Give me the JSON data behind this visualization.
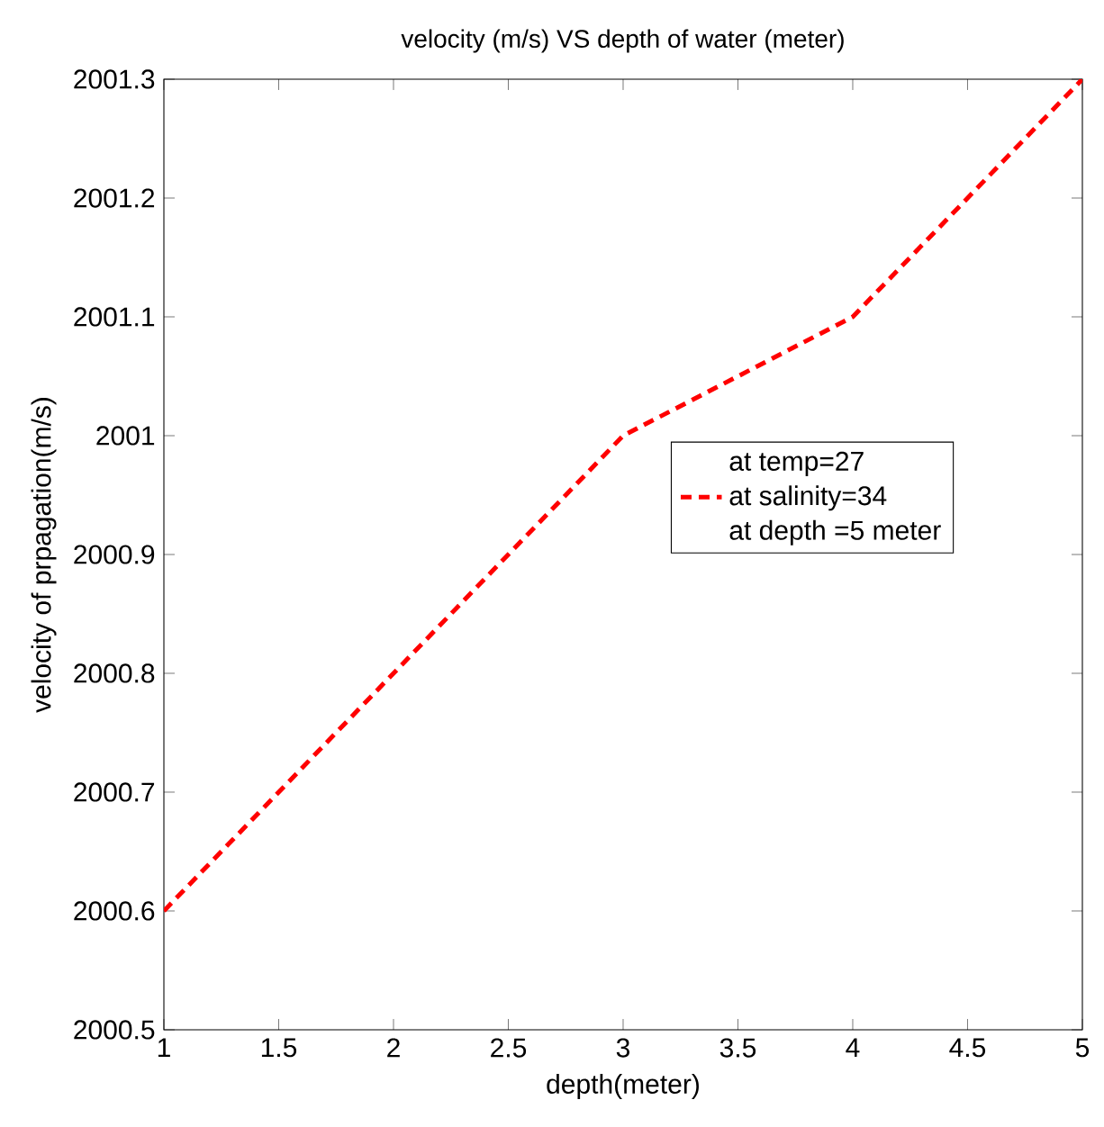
{
  "chart_data": {
    "type": "line",
    "title": "velocity (m/s) VS depth of water (meter)",
    "xlabel": "depth(meter)",
    "ylabel": "velocity of prpagation(m/s)",
    "x": [
      1,
      2,
      3,
      4,
      5
    ],
    "series": [
      {
        "name": "at salinity=34",
        "color": "#ff0000",
        "values": [
          2000.6,
          2000.8,
          2001.0,
          2001.1,
          2001.3
        ]
      }
    ],
    "line_style": "dashed",
    "marker": "none",
    "grid": false,
    "legend": "right",
    "annotations": [
      "at temp=27",
      "at depth =5 meter"
    ],
    "xlim": [
      1,
      5
    ],
    "xticks": [
      1,
      1.5,
      2,
      2.5,
      3,
      3.5,
      4,
      4.5,
      5
    ],
    "ylim": [
      2000.5,
      2001.3
    ],
    "yticks": [
      2000.5,
      2000.6,
      2000.7,
      2000.8,
      2000.9,
      2001,
      2001.1,
      2001.2,
      2001.3
    ]
  }
}
